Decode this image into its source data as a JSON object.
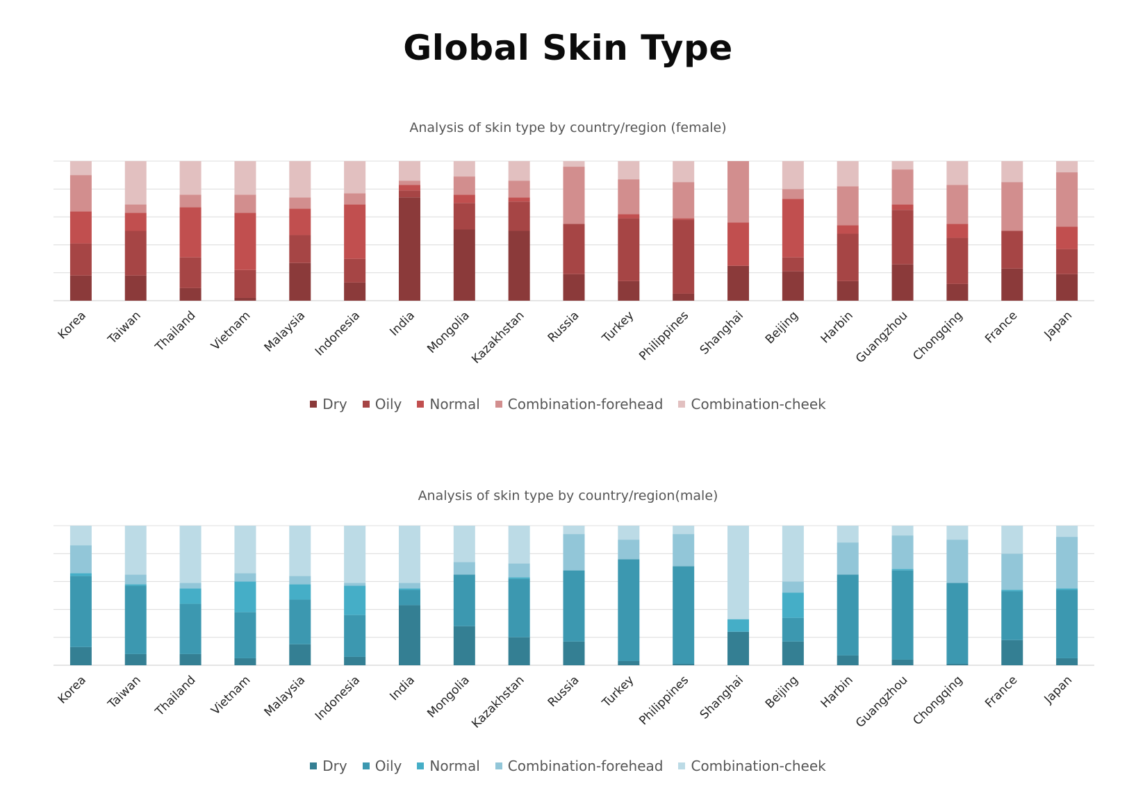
{
  "page_title": "Global Skin Type",
  "chart_data": [
    {
      "type": "bar",
      "stacked": true,
      "title": "Analysis of skin type by country/region (female)",
      "xlabel": "",
      "ylabel": "",
      "ylim": [
        0,
        100
      ],
      "grid": true,
      "legend_position": "bottom",
      "categories": [
        "Korea",
        "Taiwan",
        "Thailand",
        "Vietnam",
        "Malaysia",
        "Indonesia",
        "India",
        "Mongolia",
        "Kazakhstan",
        "Russia",
        "Turkey",
        "Philippines",
        "Shanghai",
        "Beijing",
        "Harbin",
        "Guangzhou",
        "Chongqing",
        "France",
        "Japan"
      ],
      "series": [
        {
          "name": "Dry",
          "color": "#8b3a3a",
          "values": [
            18,
            18,
            9,
            2,
            27,
            13,
            74,
            51,
            50,
            19,
            14,
            5,
            25,
            21,
            14,
            26,
            12,
            23,
            19
          ]
        },
        {
          "name": "Oily",
          "color": "#a64545",
          "values": [
            23,
            32,
            22,
            20,
            20,
            17,
            5,
            19,
            21,
            36,
            45,
            53,
            0,
            10,
            34,
            39,
            33,
            27,
            18
          ]
        },
        {
          "name": "Normal",
          "color": "#c14f4f",
          "values": [
            23,
            13,
            36,
            41,
            19,
            39,
            4,
            6,
            3,
            0,
            3,
            1,
            31,
            42,
            6,
            4,
            10,
            0,
            16
          ]
        },
        {
          "name": "Combination-forehead",
          "color": "#d28e8e",
          "values": [
            26,
            6,
            9,
            13,
            8,
            8,
            3,
            13,
            12,
            41,
            25,
            26,
            44,
            7,
            28,
            25,
            28,
            35,
            39
          ]
        },
        {
          "name": "Combination-cheek",
          "color": "#e2c0c0",
          "values": [
            10,
            31,
            24,
            24,
            26,
            23,
            14,
            11,
            14,
            4,
            13,
            15,
            0,
            20,
            18,
            6,
            17,
            15,
            8
          ]
        }
      ]
    },
    {
      "type": "bar",
      "stacked": true,
      "title": "Analysis of skin type by country/region(male)",
      "xlabel": "",
      "ylabel": "",
      "ylim": [
        0,
        100
      ],
      "grid": true,
      "legend_position": "bottom",
      "categories": [
        "Korea",
        "Taiwan",
        "Thailand",
        "Vietnam",
        "Malaysia",
        "Indonesia",
        "India",
        "Mongolia",
        "Kazakhstan",
        "Russia",
        "Turkey",
        "Philippines",
        "Shanghai",
        "Beijing",
        "Harbin",
        "Guangzhou",
        "Chongqing",
        "France",
        "Japan"
      ],
      "series": [
        {
          "name": "Dry",
          "color": "#347f93",
          "values": [
            13,
            8,
            8,
            5,
            15,
            6,
            43,
            28,
            20,
            17,
            3,
            1,
            24,
            17,
            7,
            4,
            1,
            18,
            5
          ]
        },
        {
          "name": "Oily",
          "color": "#3c98b0",
          "values": [
            51,
            49,
            36,
            33,
            32,
            30,
            11,
            37,
            42,
            51,
            73,
            70,
            0,
            17,
            58,
            64,
            58,
            35,
            49
          ]
        },
        {
          "name": "Normal",
          "color": "#45aec7",
          "values": [
            2,
            1,
            11,
            22,
            11,
            21,
            1,
            0,
            1,
            0,
            0,
            0,
            9,
            18,
            0,
            1,
            0,
            1,
            1
          ]
        },
        {
          "name": "Combination-forehead",
          "color": "#92c6d8",
          "values": [
            20,
            7,
            4,
            6,
            6,
            2,
            4,
            9,
            10,
            26,
            14,
            23,
            0,
            8,
            23,
            24,
            31,
            26,
            37
          ]
        },
        {
          "name": "Combination-cheek",
          "color": "#bcdbe6",
          "values": [
            14,
            35,
            41,
            34,
            36,
            41,
            41,
            26,
            27,
            6,
            10,
            6,
            67,
            40,
            12,
            7,
            10,
            20,
            8
          ]
        }
      ]
    }
  ]
}
